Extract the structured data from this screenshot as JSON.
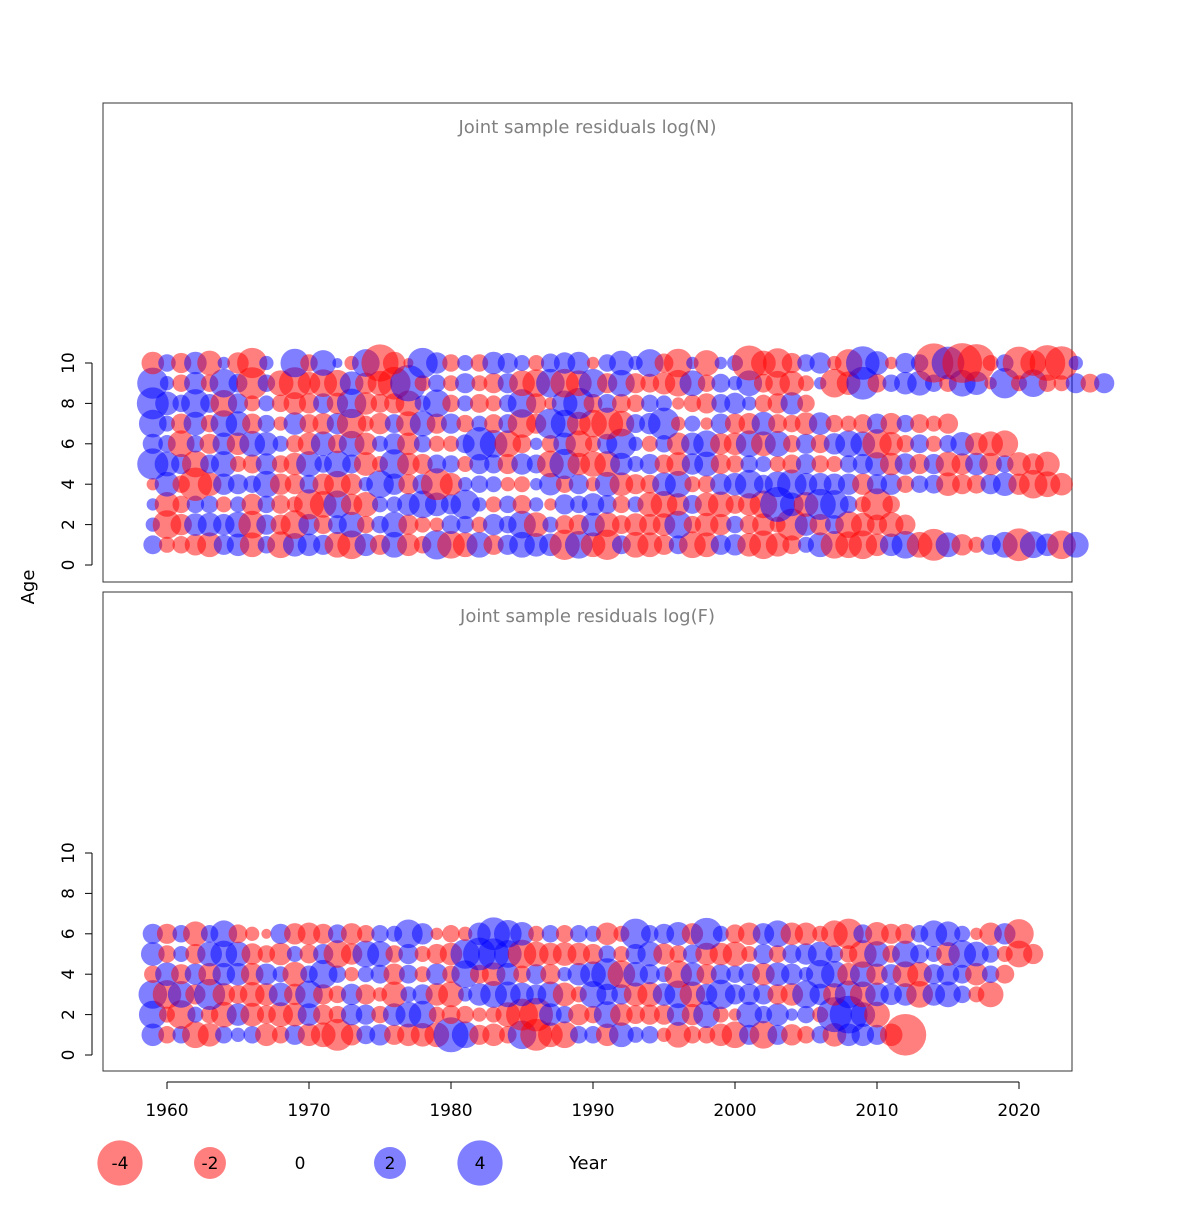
{
  "chart_data": {
    "type": "scatter",
    "subtype": "bubble",
    "xlabel": "Year",
    "ylabel": "Age",
    "xlim": [
      1955,
      2024
    ],
    "ylim": [
      -0.2,
      11
    ],
    "x_ticks": [
      1960,
      1970,
      1980,
      1990,
      2000,
      2010,
      2020
    ],
    "y_ticks": [
      0,
      2,
      4,
      6,
      8,
      10
    ],
    "colors": {
      "positive": "#0000ff",
      "negative": "#ff0000",
      "opacity": 0.5
    },
    "legend": {
      "placement": "bottom",
      "entries": [
        {
          "label": "-4",
          "value": -4
        },
        {
          "label": "-2",
          "value": -2
        },
        {
          "label": "0",
          "value": 0
        },
        {
          "label": "2",
          "value": 2
        },
        {
          "label": "4",
          "value": 4
        }
      ]
    },
    "panels": [
      {
        "title": "Joint sample residuals log(N)",
        "years": [
          1959,
          2020
        ],
        "ages": [
          1,
          10
        ],
        "residuals": {
          "10": [
            -1.0,
            0.6,
            -0.8,
            1.0,
            -1.2,
            0.3,
            -0.9,
            -1.8,
            0.4,
            0,
            1.6,
            -0.6,
            1.3,
            0.2,
            -0.4,
            1.5,
            -2.7,
            -1.0,
            -0.2,
            1.8,
            0.9,
            -0.6,
            0.5,
            -0.6,
            1.0,
            0.8,
            0.5,
            -0.5,
            0.7,
            0.9,
            1.0,
            -0.3,
            0.6,
            1.2,
            0.4,
            1.5,
            -0.7,
            -1.6,
            0.3,
            -1.3,
            0.3,
            0.5,
            -2.4,
            -1.2,
            -1.7,
            -0.8,
            0.6,
            0.9,
            -0.4,
            -1.5,
            2.2,
            1.1,
            -0.3,
            0.8,
            0.6,
            -3.0,
            2.1,
            -3.1,
            -2.8,
            -0.5,
            0.6,
            -2.1,
            -1.3,
            -2.5,
            -2.2,
            0.4
          ],
          "9": [
            1.9,
            0.4,
            -0.6,
            1.0,
            -0.6,
            1.6,
            0.7,
            -2.0,
            0.6,
            -1.3,
            -2.0,
            -1.0,
            -1.5,
            -1.4,
            1.1,
            -0.9,
            -1.2,
            -2.1,
            2.6,
            -0.5,
            0.6,
            -0.5,
            0.8,
            -0.5,
            -0.8,
            0.8,
            -1.3,
            -1.5,
            1.6,
            -1.6,
            -1.3,
            1.6,
            -0.8,
            1.4,
            -0.8,
            -0.7,
            -1.0,
            -1.4,
            1.3,
            -0.6,
            0.7,
            0.4,
            1.3,
            -0.7,
            -1.2,
            -1.2,
            -0.5,
            0.3,
            -1.6,
            -1.1,
            2.1,
            -0.7,
            0.6,
            1.0,
            1.2,
            0.6,
            -0.6,
            1.4,
            1.1,
            -0.3,
            1.8,
            -0.5,
            1.5,
            -0.6,
            -0.5,
            0.8,
            -0.7,
            0.8
          ],
          "8": [
            2.0,
            1.1,
            0.6,
            1.6,
            0.7,
            -1.4,
            0.8,
            -0.5,
            0.5,
            -0.6,
            -1.0,
            -0.8,
            0.8,
            -0.9,
            1.7,
            -1.0,
            -0.7,
            -0.8,
            -1.3,
            0.5,
            1.5,
            -0.6,
            0.5,
            -0.7,
            -0.5,
            0.6,
            1.6,
            -0.8,
            -0.3,
            1.3,
            1.9,
            -0.7,
            0.7,
            -0.7,
            -0.6,
            0.6,
            0.5,
            -0.3,
            -0.6,
            -0.8,
            0.7,
            0.9,
            0.4,
            -0.6,
            -0.8,
            1.0,
            -0.6
          ],
          "7": [
            1.5,
            0.5,
            -0.8,
            1.1,
            -0.6,
            1.4,
            1.2,
            -0.8,
            0.6,
            -0.4,
            1.0,
            -0.7,
            -0.9,
            0.9,
            -1.7,
            -0.5,
            -0.9,
            0.7,
            -1.2,
            1.3,
            -0.8,
            0.8,
            -0.6,
            0.5,
            -0.7,
            0.7,
            -1.6,
            -0.8,
            1.8,
            1.5,
            -1.1,
            -1.5,
            -2.0,
            -1.3,
            0.7,
            0.9,
            2.0,
            -0.4,
            0.5,
            -0.3,
            0.8,
            -0.8,
            -0.9,
            1.1,
            -0.7,
            -0.6,
            -1.0,
            1.0,
            -0.6,
            -0.5,
            -0.7,
            0.8,
            -0.9,
            0.6,
            -0.7,
            -0.5,
            -0.8
          ],
          "6": [
            0.8,
            0.6,
            -1.4,
            0.6,
            -0.8,
            1.0,
            -1.0,
            1.3,
            1.1,
            0.5,
            -0.6,
            -1.0,
            1.2,
            -0.7,
            1.3,
            -1.0,
            0.5,
            0.9,
            -1.0,
            0.6,
            -0.5,
            -0.5,
            0.7,
            2.2,
            1.5,
            -1.4,
            -0.7,
            0.3,
            -0.6,
            1.0,
            -1.4,
            -0.5,
            0.8,
            1.8,
            0.4,
            -0.5,
            0.6,
            -1.0,
            1.0,
            1.4,
            -0.9,
            -1.0,
            1.4,
            -1.2,
            1.3,
            -0.6,
            0.8,
            -0.7,
            0.9,
            1.4,
            1.2,
            -1.7,
            -1.1,
            -0.6,
            0.7,
            -0.5,
            0.6,
            1.1,
            -1.0,
            -1.2,
            -1.4
          ],
          "5": [
            1.9,
            1.2,
            0.8,
            -1.4,
            0.7,
            1.3,
            -0.5,
            -0.7,
            0.9,
            -0.6,
            -1.0,
            1.3,
            0.6,
            1.4,
            0.7,
            -1.1,
            -0.5,
            1.7,
            -1.0,
            -0.8,
            0.7,
            0.6,
            -0.5,
            0.8,
            0.7,
            -0.8,
            0.9,
            0.7,
            -1.4,
            1.8,
            -1.0,
            -1.3,
            -1.3,
            1.0,
            0.5,
            0.8,
            -0.7,
            -1.1,
            0.9,
            1.2,
            -0.8,
            -0.6,
            0.6,
            0.5,
            -0.5,
            -0.7,
            0.8,
            -0.6,
            -0.5,
            0.6,
            0.8,
            1.1,
            -1.0,
            0.9,
            -0.8,
            0.8,
            -1.2,
            -0.9,
            1.0,
            -1.0,
            0.6,
            -1.1,
            -0.9,
            -1.2
          ],
          "4": [
            -0.3,
            1.2,
            -0.6,
            -2.2,
            -1.1,
            0.9,
            0.8,
            0.6,
            1.4,
            -0.9,
            -0.8,
            0.7,
            -0.9,
            -1.4,
            -0.9,
            0.4,
            1.5,
            0.9,
            -0.8,
            0.8,
            -2.0,
            -1.0,
            0.4,
            0.6,
            0.5,
            -0.4,
            -0.5,
            0.3,
            1.0,
            -0.6,
            0.8,
            -0.4,
            1.2,
            -1.1,
            -0.8,
            -0.7,
            1.1,
            1.4,
            -0.5,
            -0.6,
            0.9,
            1.0,
            1.6,
            0.7,
            1.3,
            1.7,
            1.0,
            1.0,
            0.9,
            0.9,
            -0.9,
            0.8,
            0.9,
            -0.6,
            0.6,
            0.7,
            -1.1,
            -0.8,
            -0.7,
            0.8,
            1.1,
            -0.9,
            -1.6,
            -1.3,
            -1.0
          ],
          "3": [
            0.3,
            -1.2,
            -0.6,
            0.6,
            0.6,
            -0.5,
            0.5,
            -0.9,
            0.6,
            -0.7,
            -0.5,
            -1.8,
            -1.4,
            1.5,
            -0.9,
            -1.2,
            0.5,
            0.5,
            1.0,
            1.5,
            1.1,
            0.8,
            1.7,
            0.4,
            -0.5,
            0.6,
            -0.7,
            0.4,
            -0.3,
            0.8,
            0.6,
            1.0,
            0.7,
            -0.6,
            0.5,
            -1.2,
            -1.4,
            -1.0,
            0.7,
            -1.1,
            -1.3,
            -0.7,
            -1.0,
            -1.5,
            2.4,
            1.1,
            -1.2,
            1.9,
            1.6,
            0.6,
            -0.5,
            -2.0,
            -0.6
          ],
          "2": [
            0.4,
            -1.6,
            -0.9,
            1.0,
            1.1,
            0.9,
            1.3,
            -1.5,
            0.8,
            -0.8,
            -1.6,
            0.9,
            -0.7,
            0.7,
            1.3,
            -0.6,
            0.6,
            1.3,
            -0.8,
            -0.5,
            -0.4,
            0.7,
            0.6,
            -0.5,
            0.9,
            0.6,
            1.5,
            -1.2,
            0.5,
            -0.7,
            -0.8,
            1.1,
            -1.2,
            -0.7,
            -1.0,
            -0.9,
            -1.0,
            1.5,
            -0.6,
            -1.1,
            -0.9,
            0.6,
            -0.7,
            -1.0,
            -0.5,
            -2.0,
            1.0,
            -0.9,
            0.7,
            -1.4,
            -1.1,
            -0.8,
            -1.2,
            -0.8
          ],
          "1": [
            0.7,
            -0.5,
            -0.6,
            -0.9,
            -1.2,
            0.8,
            1.0,
            -1.2,
            0.6,
            -1.4,
            1.1,
            1.0,
            0.8,
            -1.3,
            -1.6,
            1.0,
            -0.8,
            1.3,
            -1.0,
            -0.6,
            1.7,
            -1.5,
            -1.2,
            1.3,
            -0.8,
            0.8,
            1.3,
            1.1,
            1.0,
            -1.8,
            1.5,
            -1.2,
            -1.8,
            0.7,
            -1.3,
            -1.2,
            -0.8,
            0.7,
            -1.4,
            -1.2,
            0.8,
            0.9,
            -1.1,
            -1.6,
            -1.1,
            -0.7,
            0.5,
            1.2,
            -1.5,
            -1.4,
            -1.6,
            -1.0,
            1.0,
            1.5,
            -1.3,
            -2.0,
            1.2,
            -0.9,
            -0.5,
            0.8,
            1.3,
            -2.1,
            1.4,
            1.0,
            -1.6,
            1.3
          ]
        }
      },
      {
        "title": "Joint sample residuals log(F)",
        "years": [
          1959,
          2020
        ],
        "ages": [
          1,
          6
        ],
        "residuals": {
          "6": [
            0.8,
            -0.8,
            0.6,
            -1.2,
            0.6,
            1.4,
            -0.7,
            -0.4,
            -0.2,
            0.8,
            -0.9,
            -1.0,
            -0.8,
            0.7,
            -0.9,
            -0.6,
            0.6,
            0.5,
            1.6,
            0.9,
            -0.3,
            -0.6,
            -0.4,
            1.0,
            2.1,
            1.5,
            1.1,
            -0.5,
            0.6,
            -0.6,
            0.6,
            0.5,
            -1.0,
            -0.5,
            1.8,
            0.6,
            0.8,
            1.1,
            -0.9,
            2.0,
            0.5,
            -0.7,
            -1.0,
            0.9,
            1.4,
            -1.0,
            -1.0,
            -0.5,
            -1.4,
            -1.8,
            0.7,
            -1.1,
            -0.8,
            -0.8,
            0.6,
            1.4,
            1.2,
            0.5,
            -0.3,
            -1.0,
            0.9,
            -1.7
          ],
          "5": [
            1.1,
            -0.6,
            0.5,
            -0.8,
            1.2,
            1.4,
            1.2,
            -0.9,
            -0.6,
            -1.0,
            0.5,
            -0.7,
            0.8,
            -1.5,
            -0.9,
            1.4,
            1.3,
            -0.6,
            0.8,
            -0.5,
            -0.8,
            -1.0,
            1.7,
            2.1,
            1.9,
            1.5,
            -1.6,
            -1.2,
            -1.0,
            -1.1,
            -1.0,
            -0.8,
            0.6,
            -0.5,
            0.8,
            1.2,
            -0.9,
            -0.6,
            0.7,
            -1.0,
            -1.0,
            -1.2,
            -0.5,
            0.8,
            -0.6,
            0.7,
            0.9,
            1.2,
            0.6,
            -0.6,
            -1.5,
            1.3,
            -0.6,
            1.4,
            0.7,
            0.5,
            -1.1,
            1.5,
            1.2,
            0.6,
            -0.5,
            -1.4,
            -0.8
          ],
          "4": [
            -0.6,
            1.1,
            -0.8,
            0.9,
            -1.0,
            1.0,
            1.0,
            -1.0,
            0.9,
            0.5,
            -1.2,
            0.6,
            1.6,
            0.6,
            -0.4,
            0.5,
            0.7,
            -0.9,
            0.7,
            -0.5,
            0.9,
            -0.6,
            1.5,
            -0.7,
            -1.1,
            1.0,
            -0.6,
            0.8,
            -0.8,
            0.4,
            1.0,
            1.3,
            2.0,
            -1.5,
            1.2,
            0.8,
            0.5,
            -1.5,
            1.1,
            -0.8,
            0.8,
            0.6,
            0.9,
            -1.0,
            1.1,
            0.9,
            0.4,
            1.6,
            1.4,
            -1.0,
            1.3,
            -0.9,
            0.8,
            -1.3,
            -1.2,
            0.8,
            1.0,
            0.7,
            -1.0,
            0.6,
            -0.7
          ],
          "3": [
            1.6,
            -1.6,
            1.4,
            -0.8,
            1.9,
            -1.0,
            -0.7,
            -1.2,
            -1.0,
            1.1,
            -0.9,
            1.5,
            -0.8,
            -0.6,
            0.9,
            -0.8,
            -0.4,
            -1.3,
            0.5,
            0.8,
            -1.0,
            -1.3,
            0.4,
            1.0,
            1.4,
            1.3,
            1.1,
            0.8,
            1.3,
            -1.1,
            -0.5,
            1.4,
            0.9,
            0.8,
            -1.1,
            -1.2,
            1.0,
            1.5,
            -1.3,
            0.9,
            1.7,
            0.8,
            0.9,
            0.8,
            -0.8,
            -1.0,
            1.5,
            0.9,
            -1.0,
            1.5,
            -1.3,
            1.1,
            0.9,
            1.0,
            -1.4,
            1.0,
            1.3,
            0.6,
            -0.5,
            -1.3
          ],
          "2": [
            1.5,
            -0.5,
            -1.6,
            0.5,
            -0.6,
            -1.3,
            1.0,
            -1.1,
            -0.7,
            -1.2,
            -1.1,
            1.0,
            -0.8,
            -0.6,
            0.9,
            0.8,
            -0.6,
            1.0,
            1.3,
            1.5,
            -0.5,
            -0.7,
            -0.6,
            -0.4,
            -0.5,
            -1.2,
            -2.0,
            -2.2,
            1.0,
            0.6,
            -0.9,
            -0.6,
            1.4,
            -1.0,
            -0.7,
            -0.8,
            -0.8,
            1.0,
            -0.9,
            1.4,
            -0.5,
            -0.3,
            1.3,
            0.6,
            1.0,
            0.3,
            0.6,
            -0.5,
            2.4,
            2.8,
            1.2,
            -1.3
          ],
          "1": [
            1.0,
            -0.6,
            0.6,
            -1.4,
            -1.1,
            0.6,
            0.4,
            0.6,
            -1.0,
            -0.6,
            0.8,
            -1.0,
            -1.2,
            -2.0,
            -0.9,
            0.7,
            0.9,
            -0.8,
            -1.0,
            -1.1,
            -1.2,
            2.4,
            1.4,
            -0.8,
            -1.0,
            -0.6,
            1.6,
            -2.0,
            -1.2,
            -1.4,
            0.6,
            0.6,
            -1.0,
            1.2,
            0.5,
            0.6,
            -0.4,
            -1.3,
            -0.6,
            -0.6,
            -1.0,
            -1.4,
            0.8,
            -1.5,
            0.8,
            -0.9,
            -0.6,
            0.6,
            -1.1,
            1.0,
            1.0,
            0.8,
            -1.0,
            -3.4
          ]
        }
      }
    ]
  }
}
